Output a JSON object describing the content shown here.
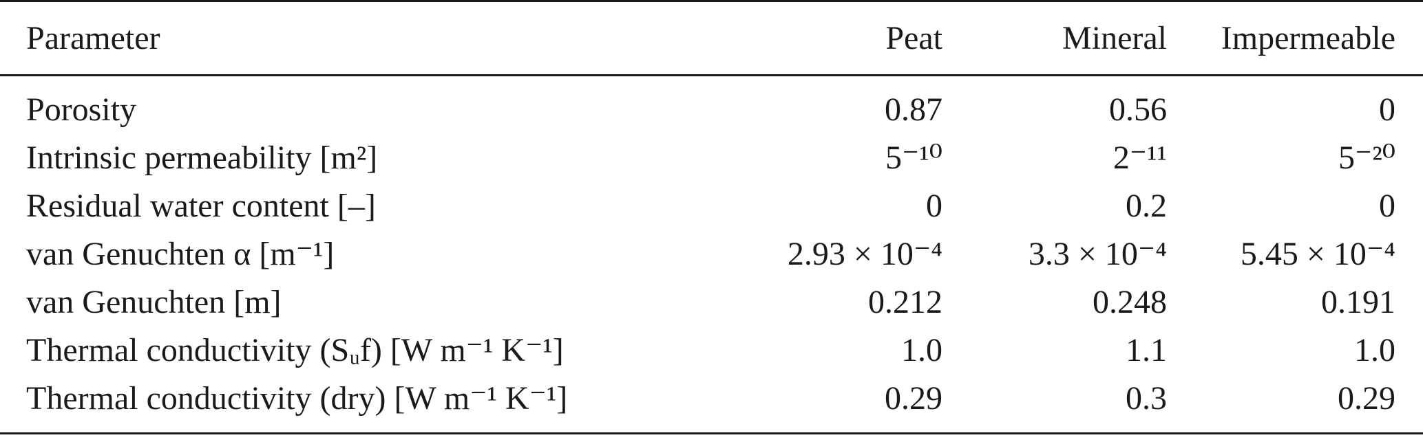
{
  "table": {
    "columns": [
      "Parameter",
      "Peat",
      "Mineral",
      "Impermeable"
    ],
    "rows": [
      {
        "parameter": "Porosity",
        "peat": "0.87",
        "mineral": "0.56",
        "impermeable": "0"
      },
      {
        "parameter": "Intrinsic permeability [m²]",
        "peat": "5⁻¹⁰",
        "mineral": "2⁻¹¹",
        "impermeable": "5⁻²⁰"
      },
      {
        "parameter": "Residual water content [–]",
        "peat": "0",
        "mineral": "0.2",
        "impermeable": "0"
      },
      {
        "parameter": "van Genuchten α [m⁻¹]",
        "peat": "2.93 × 10⁻⁴",
        "mineral": "3.3 × 10⁻⁴",
        "impermeable": "5.45 × 10⁻⁴"
      },
      {
        "parameter": "van Genuchten [m]",
        "peat": "0.212",
        "mineral": "0.248",
        "impermeable": "0.191"
      },
      {
        "parameter": "Thermal conductivity (Sᵤf) [W m⁻¹ K⁻¹]",
        "peat": "1.0",
        "mineral": "1.1",
        "impermeable": "1.0"
      },
      {
        "parameter": "Thermal conductivity (dry) [W m⁻¹ K⁻¹]",
        "peat": "0.29",
        "mineral": "0.3",
        "impermeable": "0.29"
      }
    ]
  }
}
